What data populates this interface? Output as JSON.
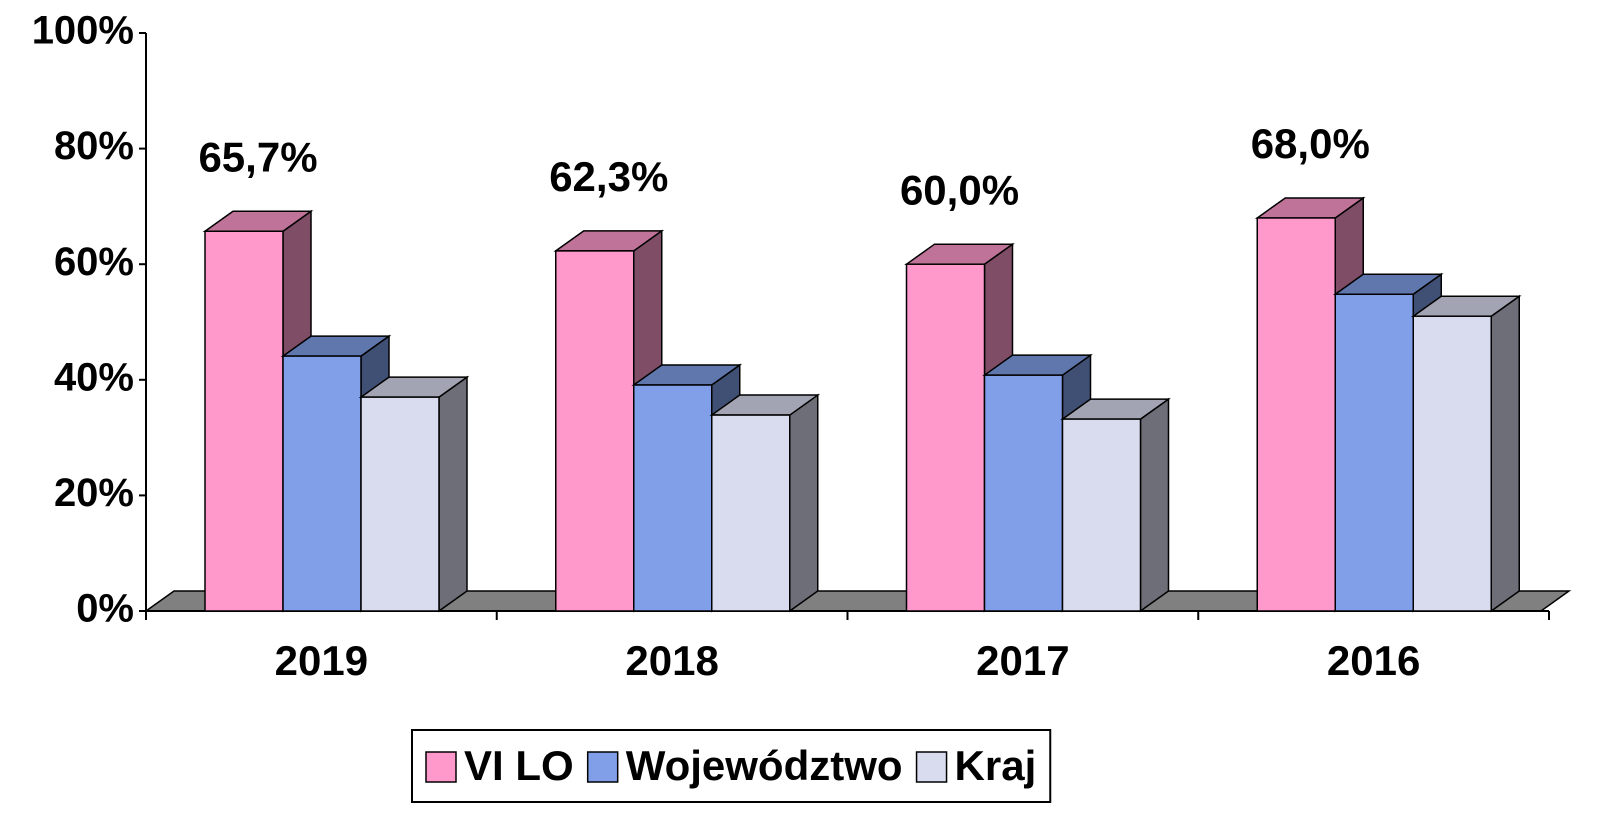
{
  "chart_data": {
    "type": "bar3d",
    "categories": [
      "2019",
      "2018",
      "2017",
      "2016"
    ],
    "series": [
      {
        "name": "VI LO",
        "color": "#ff99cc",
        "values": [
          65.7,
          62.3,
          60.0,
          68.0
        ],
        "value_labels": [
          "65,7%",
          "62,3%",
          "60,0%",
          "68,0%"
        ]
      },
      {
        "name": "Województwo",
        "color": "#809fe8",
        "values": [
          44.1,
          39.1,
          40.8,
          54.8
        ]
      },
      {
        "name": "Kraj",
        "color": "#d9dbee",
        "values": [
          37.0,
          33.9,
          33.2,
          51.0
        ]
      }
    ],
    "ylim": [
      0,
      100
    ],
    "yticks": [
      {
        "value": 0,
        "label": "0%"
      },
      {
        "value": 20,
        "label": "20%"
      },
      {
        "value": 40,
        "label": "40%"
      },
      {
        "value": 60,
        "label": "60%"
      },
      {
        "value": 80,
        "label": "80%"
      },
      {
        "value": 100,
        "label": "100%"
      }
    ],
    "legend": "bottom"
  }
}
